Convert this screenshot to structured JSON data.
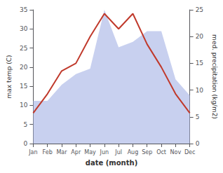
{
  "chart_data": {
    "type": "line",
    "xlabel": "date (month)",
    "ylabel": "max temp (C)",
    "y2label": "med. precipitation (kg/m2)",
    "categories": [
      "Jan",
      "Feb",
      "Mar",
      "Apr",
      "May",
      "Jun",
      "Jul",
      "Aug",
      "Sep",
      "Oct",
      "Nov",
      "Dec"
    ],
    "series": [
      {
        "type": "area",
        "color": "#b0bce8",
        "axis": "y2",
        "values": [
          8,
          8,
          11,
          13,
          14,
          25,
          18,
          19,
          21,
          21,
          12,
          9
        ]
      },
      {
        "type": "line",
        "color": "#c0392b",
        "axis": "y",
        "values": [
          8,
          13,
          19,
          21,
          28,
          34,
          30,
          34,
          26,
          20,
          13,
          8
        ]
      }
    ],
    "ylim": [
      0,
      35
    ],
    "yticks": [
      0,
      5,
      10,
      15,
      20,
      25,
      30,
      35
    ],
    "y2lim": [
      0,
      25
    ],
    "y2ticks": [
      0,
      5,
      10,
      15,
      20,
      25
    ],
    "grid": false
  }
}
